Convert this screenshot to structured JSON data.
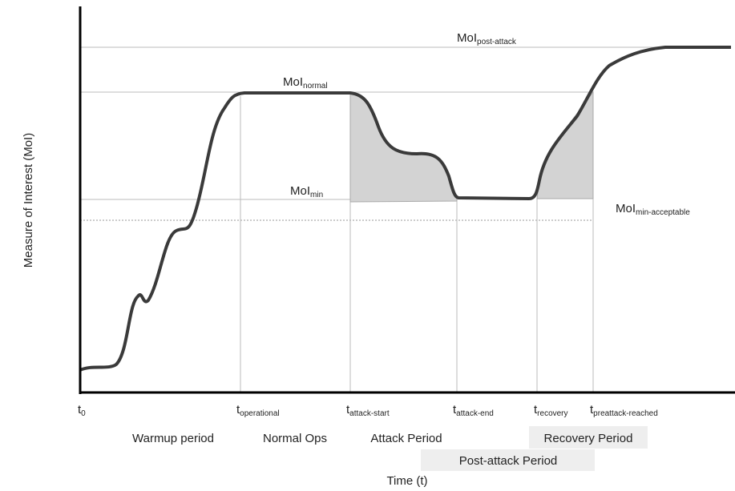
{
  "y_axis_label": "Measure of Interest (MoI)",
  "x_axis_label": "Time (t)",
  "levels": [
    {
      "base": "MoI",
      "sub": "post-attack"
    },
    {
      "base": "MoI",
      "sub": "normal"
    },
    {
      "base": "MoI",
      "sub": "min"
    },
    {
      "base": "MoI",
      "sub": "min-acceptable"
    }
  ],
  "times": [
    {
      "base": "t",
      "sub": "0"
    },
    {
      "base": "t",
      "sub": "operational"
    },
    {
      "base": "t",
      "sub": "attack-start"
    },
    {
      "base": "t",
      "sub": "attack-end"
    },
    {
      "base": "t",
      "sub": "recovery"
    },
    {
      "base": "t",
      "sub": "preattack-reached"
    }
  ],
  "periods": [
    "Warmup period",
    "Normal Ops",
    "Attack Period",
    "Recovery Period",
    "Post-attack Period"
  ]
}
